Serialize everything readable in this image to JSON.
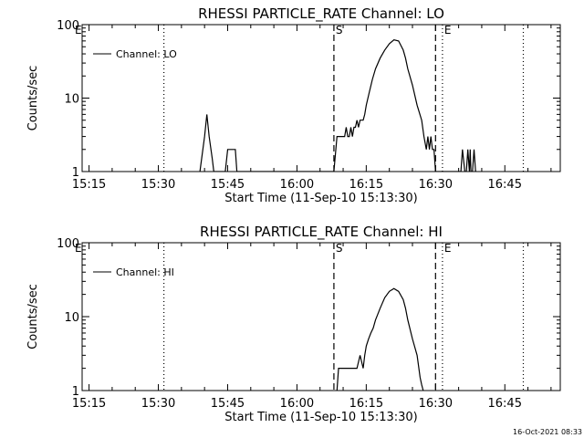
{
  "footer_timestamp": "16-Oct-2021 08:33",
  "chart_data": [
    {
      "type": "line",
      "title": "RHESSI PARTICLE_RATE Channel: LO",
      "xlabel": "Start Time (11-Sep-10 15:13:30)",
      "ylabel": "Counts/sec",
      "yscale": "log",
      "xlim": [
        "15:13:30",
        "16:57:00"
      ],
      "ylim": [
        1,
        100
      ],
      "x_ticks": [
        "15:15",
        "15:30",
        "15:45",
        "16:00",
        "16:15",
        "16:30",
        "16:45"
      ],
      "y_ticks": [
        "1",
        "10",
        "100"
      ],
      "legend": {
        "placement": "top-left",
        "entries": [
          "Channel: LO"
        ]
      },
      "markers": [
        {
          "label": "",
          "time": "15:31:12",
          "style": "dotted"
        },
        {
          "label": "S",
          "time": "16:08:00",
          "style": "dashed"
        },
        {
          "label": "",
          "time": "16:30:00",
          "style": "dashed"
        },
        {
          "label": "E",
          "time": "16:31:30",
          "style": "dotted"
        },
        {
          "label": "",
          "time": "16:49:00",
          "style": "dotted"
        }
      ],
      "corner_labels": [
        "E"
      ],
      "series": [
        {
          "name": "Channel: LO",
          "x": [
            "15:39:00",
            "15:40:00",
            "15:40:30",
            "15:41:00",
            "15:41:40",
            "15:42:00",
            "15:42:30",
            "15:44:30",
            "15:45:00",
            "15:46:40",
            "15:47:00",
            "15:49:30",
            "15:49:40",
            "16:08:00",
            "16:08:40",
            "16:09:00",
            "16:10:20",
            "16:10:40",
            "16:11:00",
            "16:11:20",
            "16:11:40",
            "16:12:00",
            "16:12:20",
            "16:12:40",
            "16:13:00",
            "16:13:20",
            "16:13:40",
            "16:14:00",
            "16:14:20",
            "16:14:40",
            "16:15:00",
            "16:15:40",
            "16:16:20",
            "16:17:00",
            "16:18:00",
            "16:19:00",
            "16:20:00",
            "16:21:00",
            "16:22:00",
            "16:23:00",
            "16:23:30",
            "16:24:00",
            "16:25:00",
            "16:26:00",
            "16:27:00",
            "16:27:30",
            "16:28:00",
            "16:28:20",
            "16:28:40",
            "16:29:00",
            "16:29:20",
            "16:29:40",
            "16:30:00",
            "16:30:10",
            "16:35:30",
            "16:35:50",
            "16:36:20",
            "16:36:40",
            "16:37:00",
            "16:37:20",
            "16:37:30",
            "16:37:40",
            "16:38:00",
            "16:38:20",
            "16:38:40",
            "16:38:50"
          ],
          "values": [
            1,
            3,
            6,
            3,
            1.5,
            1,
            1,
            1,
            2,
            2,
            1,
            1,
            1,
            1,
            3,
            3,
            3,
            4,
            3,
            3,
            4,
            3,
            4,
            4,
            5,
            4,
            5,
            5,
            5,
            6,
            8,
            12,
            18,
            25,
            35,
            45,
            55,
            62,
            60,
            45,
            35,
            25,
            15,
            8,
            5,
            3,
            2,
            3,
            2,
            3,
            2,
            2,
            1,
            1,
            1,
            2,
            1,
            1,
            2,
            1,
            2,
            1,
            1,
            2,
            1,
            1
          ]
        }
      ]
    },
    {
      "type": "line",
      "title": "RHESSI PARTICLE_RATE Channel: HI",
      "xlabel": "Start Time (11-Sep-10 15:13:30)",
      "ylabel": "Counts/sec",
      "yscale": "log",
      "xlim": [
        "15:13:30",
        "16:57:00"
      ],
      "ylim": [
        1,
        100
      ],
      "x_ticks": [
        "15:15",
        "15:30",
        "15:45",
        "16:00",
        "16:15",
        "16:30",
        "16:45"
      ],
      "y_ticks": [
        "1",
        "10",
        "100"
      ],
      "legend": {
        "placement": "top-left",
        "entries": [
          "Channel: HI"
        ]
      },
      "markers": [
        {
          "label": "",
          "time": "15:31:12",
          "style": "dotted"
        },
        {
          "label": "S",
          "time": "16:08:00",
          "style": "dashed"
        },
        {
          "label": "",
          "time": "16:30:00",
          "style": "dashed"
        },
        {
          "label": "E",
          "time": "16:31:30",
          "style": "dotted"
        },
        {
          "label": "",
          "time": "16:49:00",
          "style": "dotted"
        }
      ],
      "corner_labels": [
        "E"
      ],
      "series": [
        {
          "name": "Channel: HI",
          "x": [
            "16:08:40",
            "16:09:00",
            "16:11:00",
            "16:11:40",
            "16:12:00",
            "16:13:00",
            "16:13:40",
            "16:14:20",
            "16:14:40",
            "16:15:00",
            "16:15:30",
            "16:16:00",
            "16:16:30",
            "16:17:00",
            "16:18:00",
            "16:19:00",
            "16:20:00",
            "16:21:00",
            "16:22:00",
            "16:23:00",
            "16:23:30",
            "16:24:00",
            "16:25:00",
            "16:26:00",
            "16:26:40",
            "16:27:00",
            "16:27:20"
          ],
          "values": [
            1,
            2,
            2,
            2,
            2,
            2,
            3,
            2,
            3,
            4,
            5,
            6,
            7,
            9,
            13,
            18,
            22,
            24,
            22,
            17,
            13,
            9,
            5,
            3,
            1.5,
            1.2,
            1
          ]
        }
      ]
    }
  ]
}
